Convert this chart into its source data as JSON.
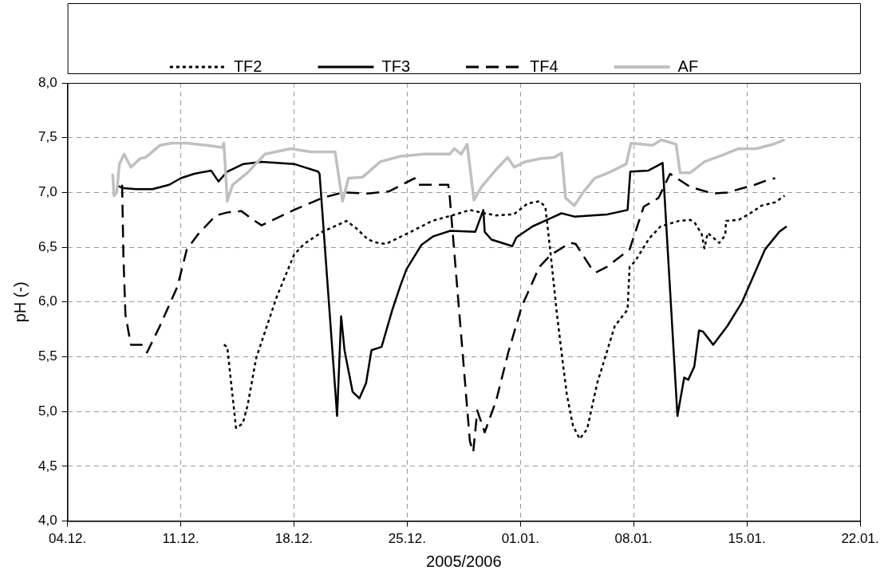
{
  "chart_data": {
    "type": "line",
    "xlabel": "2005/2006",
    "ylabel": "pH (-)",
    "xlim": [
      "2005-12-04",
      "2006-01-22"
    ],
    "xticks": [
      {
        "value": "2005-12-04",
        "label": "04.12."
      },
      {
        "value": "2005-12-11",
        "label": "11.12."
      },
      {
        "value": "2005-12-18",
        "label": "18.12."
      },
      {
        "value": "2005-12-25",
        "label": "25.12."
      },
      {
        "value": "2006-01-01",
        "label": "01.01."
      },
      {
        "value": "2006-01-08",
        "label": "08.01."
      },
      {
        "value": "2006-01-15",
        "label": "15.01."
      },
      {
        "value": "2006-01-22",
        "label": "22.01."
      }
    ],
    "ylim": [
      4,
      8
    ],
    "yticks": [
      {
        "value": 4,
        "label": "4,0"
      },
      {
        "value": 4.5,
        "label": "4,5"
      },
      {
        "value": 5,
        "label": "5,0"
      },
      {
        "value": 5.5,
        "label": "5,5"
      },
      {
        "value": 6,
        "label": "6,0"
      },
      {
        "value": 6.5,
        "label": "6,5"
      },
      {
        "value": 7,
        "label": "7,0"
      },
      {
        "value": 7.5,
        "label": "7,5"
      },
      {
        "value": 8,
        "label": "8,0"
      }
    ],
    "grid": true,
    "legend": "top",
    "marker": "none",
    "series": [
      {
        "name": "TF2",
        "color": "#000000",
        "line_style": "dotted",
        "x": [
          "2005-12-13T16:00",
          "2005-12-13T21:00",
          "2005-12-14T10:00",
          "2005-12-14T20:00",
          "2005-12-15T03:00",
          "2005-12-15T16:00",
          "2005-12-16T22:00",
          "2005-12-18T00:00",
          "2005-12-18T15:00",
          "2005-12-19T18:00",
          "2005-12-21T06:00",
          "2005-12-21T21:00",
          "2005-12-22T14:00",
          "2005-12-23T04:00",
          "2005-12-23T16:00",
          "2005-12-25T02:00",
          "2005-12-26T13:00",
          "2005-12-28T00:00",
          "2005-12-28T21:00",
          "2005-12-29T19:00",
          "2005-12-30T12:00",
          "2005-12-31T14:00",
          "2006-01-01T11:00",
          "2006-01-02T04:00",
          "2006-01-02T13:00",
          "2006-01-02T21:00",
          "2006-01-03T06:00",
          "2006-01-03T15:00",
          "2006-01-03T21:00",
          "2006-01-04T06:00",
          "2006-01-04T16:00",
          "2006-01-05T03:00",
          "2006-01-05T18:00",
          "2006-01-06T20:00",
          "2006-01-07T15:00",
          "2006-01-07T18:00",
          "2006-01-08T02:00",
          "2006-01-08T23:00",
          "2006-01-09T16:00",
          "2006-01-10T19:00",
          "2006-01-11T12:00",
          "2006-01-11T19:00",
          "2006-01-12T05:00",
          "2006-01-12T09:00",
          "2006-01-12T14:00",
          "2006-01-13T07:00",
          "2006-01-13T16:00",
          "2006-01-13T17:00",
          "2006-01-14T12:00",
          "2006-01-15T05:00",
          "2006-01-15T22:00",
          "2006-01-16T18:00",
          "2006-01-17T08:00"
        ],
        "values": [
          5.61,
          5.59,
          4.85,
          4.89,
          5.05,
          5.49,
          6.04,
          6.43,
          6.53,
          6.64,
          6.74,
          6.67,
          6.57,
          6.54,
          6.53,
          6.63,
          6.74,
          6.8,
          6.84,
          6.81,
          6.79,
          6.8,
          6.9,
          6.92,
          6.87,
          6.43,
          5.9,
          5.44,
          5.15,
          4.87,
          4.75,
          4.84,
          5.26,
          5.78,
          5.93,
          6.32,
          6.37,
          6.58,
          6.69,
          6.74,
          6.75,
          6.72,
          6.62,
          6.49,
          6.63,
          6.54,
          6.61,
          6.74,
          6.75,
          6.81,
          6.88,
          6.91,
          6.97
        ]
      },
      {
        "name": "TF3",
        "color": "#000000",
        "line_style": "solid",
        "x": [
          "2005-12-07T02:00",
          "2005-12-07T11:00",
          "2005-12-08T06:00",
          "2005-12-09T06:00",
          "2005-12-10T07:00",
          "2005-12-11T00:00",
          "2005-12-11T20:00",
          "2005-12-12T21:00",
          "2005-12-13T08:00",
          "2005-12-13T21:00",
          "2005-12-14T21:00",
          "2005-12-16T00:00",
          "2005-12-18T00:00",
          "2005-12-19T12:00",
          "2005-12-19T14:00",
          "2005-12-20T16:00",
          "2005-12-20T22:00",
          "2005-12-21T03:00",
          "2005-12-21T15:00",
          "2005-12-22T01:00",
          "2005-12-22T11:00",
          "2005-12-22T19:00",
          "2005-12-23T10:00",
          "2005-12-24T02:00",
          "2005-12-24T14:00",
          "2005-12-24T23:00",
          "2005-12-25T21:00",
          "2005-12-26T15:00",
          "2005-12-27T16:00",
          "2005-12-29T05:00",
          "2005-12-29T17:00",
          "2005-12-29T19:00",
          "2005-12-30T05:00",
          "2005-12-31T12:00",
          "2005-12-31T18:00",
          "2006-01-01T18:00",
          "2006-01-02T19:00",
          "2006-01-03T13:00",
          "2006-01-04T08:00",
          "2006-01-06T09:00",
          "2006-01-07T15:00",
          "2006-01-07T19:00",
          "2006-01-08T22:00",
          "2006-01-09T19:00",
          "2006-01-10T17:00",
          "2006-01-11T03:00",
          "2006-01-11T09:00",
          "2006-01-11T18:00",
          "2006-01-12T01:00",
          "2006-01-12T07:00",
          "2006-01-12T22:00",
          "2006-01-13T19:00",
          "2006-01-14T17:00",
          "2006-01-16T03:00",
          "2006-01-17T00:00",
          "2006-01-17T11:00"
        ],
        "values": [
          7.06,
          7.04,
          7.03,
          7.03,
          7.07,
          7.13,
          7.17,
          7.2,
          7.1,
          7.19,
          7.26,
          7.28,
          7.26,
          7.19,
          7.17,
          4.96,
          5.87,
          5.56,
          5.18,
          5.12,
          5.26,
          5.56,
          5.59,
          5.93,
          6.15,
          6.3,
          6.52,
          6.6,
          6.65,
          6.64,
          6.84,
          6.64,
          6.57,
          6.51,
          6.59,
          6.69,
          6.76,
          6.81,
          6.78,
          6.8,
          6.84,
          7.19,
          7.2,
          7.27,
          4.96,
          5.31,
          5.29,
          5.41,
          5.74,
          5.73,
          5.61,
          5.78,
          6.0,
          6.48,
          6.64,
          6.69
        ]
      },
      {
        "name": "TF4",
        "color": "#000000",
        "line_style": "dashed",
        "x": [
          "2005-12-07T09:00",
          "2005-12-07T11:00",
          "2005-12-07T14:00",
          "2005-12-07T22:00",
          "2005-12-08T14:00",
          "2005-12-08T22:00",
          "2005-12-09T17:00",
          "2005-12-10T19:00",
          "2005-12-11T09:00",
          "2005-12-12T02:00",
          "2005-12-13T04:00",
          "2005-12-13T23:00",
          "2005-12-14T18:00",
          "2005-12-15T09:00",
          "2005-12-16T00:00",
          "2005-12-18T00:00",
          "2005-12-19T18:00",
          "2005-12-21T00:00",
          "2005-12-22T14:00",
          "2005-12-23T21:00",
          "2005-12-25T11:00",
          "2005-12-25T16:00",
          "2005-12-27T13:00",
          "2005-12-27T15:00",
          "2005-12-28T21:00",
          "2005-12-29T02:00",
          "2005-12-29T08:00",
          "2005-12-29T19:00",
          "2005-12-30T12:00",
          "2005-12-31T06:00",
          "2006-01-01T02:00",
          "2006-01-02T04:00",
          "2006-01-02T21:00",
          "2006-01-04T02:00",
          "2006-01-04T10:00",
          "2006-01-05T08:00",
          "2006-01-05T16:00",
          "2006-01-06T08:00",
          "2006-01-07T18:00",
          "2006-01-08T15:00",
          "2006-01-09T13:00",
          "2006-01-10T06:00",
          "2006-01-11T12:00",
          "2006-01-12T22:00",
          "2006-01-13T19:00",
          "2006-01-15T12:00",
          "2006-01-16T05:00",
          "2006-01-16T18:00"
        ],
        "values": [
          7.07,
          6.4,
          5.88,
          5.61,
          5.61,
          5.54,
          5.78,
          6.14,
          6.48,
          6.62,
          6.79,
          6.82,
          6.83,
          6.76,
          6.7,
          6.84,
          6.95,
          7.0,
          6.99,
          7.01,
          7.13,
          7.07,
          7.07,
          6.97,
          4.73,
          4.63,
          5.01,
          4.81,
          5.1,
          5.54,
          5.96,
          6.32,
          6.43,
          6.54,
          6.53,
          6.32,
          6.27,
          6.32,
          6.48,
          6.87,
          6.95,
          7.17,
          7.05,
          6.99,
          7.0,
          7.07,
          7.11,
          7.13
        ]
      },
      {
        "name": "AF",
        "color": "#c0c0c0",
        "line_style": "solid",
        "x": [
          "2005-12-06T19:00",
          "2005-12-06T21:00",
          "2005-12-07T01:00",
          "2005-12-07T05:00",
          "2005-12-07T12:00",
          "2005-12-07T22:00",
          "2005-12-08T12:00",
          "2005-12-08T20:00",
          "2005-12-09T17:00",
          "2005-12-10T11:00",
          "2005-12-11T09:00",
          "2005-12-12T15:00",
          "2005-12-13T14:00",
          "2005-12-13T16:00",
          "2005-12-13T21:00",
          "2005-12-14T05:00",
          "2005-12-15T03:00",
          "2005-12-16T05:00",
          "2005-12-17T19:00",
          "2005-12-19T01:00",
          "2005-12-20T13:00",
          "2005-12-21T00:00",
          "2005-12-21T09:00",
          "2005-12-22T06:00",
          "2005-12-23T08:00",
          "2005-12-24T14:00",
          "2005-12-26T01:00",
          "2005-12-27T15:00",
          "2005-12-27T22:00",
          "2005-12-28T08:00",
          "2005-12-28T17:00",
          "2005-12-29T03:00",
          "2005-12-29T14:00",
          "2005-12-30T12:00",
          "2005-12-31T05:00",
          "2005-12-31T15:00",
          "2006-01-01T07:00",
          "2006-01-02T07:00",
          "2006-01-03T02:00",
          "2006-01-03T13:00",
          "2006-01-03T19:00",
          "2006-01-04T08:00",
          "2006-01-04T21:00",
          "2006-01-05T14:00",
          "2006-01-06T11:00",
          "2006-01-07T13:00",
          "2006-01-07T20:00",
          "2006-01-09T04:00",
          "2006-01-09T17:00",
          "2006-01-10T15:00",
          "2006-01-10T21:00",
          "2006-01-11T12:00",
          "2006-01-12T09:00",
          "2006-01-13T07:00",
          "2006-01-14T12:00",
          "2006-01-15T14:00",
          "2006-01-16T15:00",
          "2006-01-17T08:00"
        ],
        "values": [
          7.17,
          6.97,
          7.0,
          7.26,
          7.35,
          7.23,
          7.31,
          7.32,
          7.43,
          7.45,
          7.45,
          7.43,
          7.41,
          7.45,
          6.92,
          7.07,
          7.18,
          7.35,
          7.4,
          7.37,
          7.37,
          6.92,
          7.13,
          7.14,
          7.28,
          7.33,
          7.35,
          7.35,
          7.4,
          7.35,
          7.44,
          6.93,
          7.05,
          7.21,
          7.32,
          7.23,
          7.28,
          7.31,
          7.32,
          7.36,
          6.95,
          6.88,
          7.0,
          7.13,
          7.18,
          7.26,
          7.45,
          7.43,
          7.48,
          7.44,
          7.18,
          7.18,
          7.28,
          7.33,
          7.4,
          7.4,
          7.44,
          7.48
        ]
      }
    ]
  }
}
